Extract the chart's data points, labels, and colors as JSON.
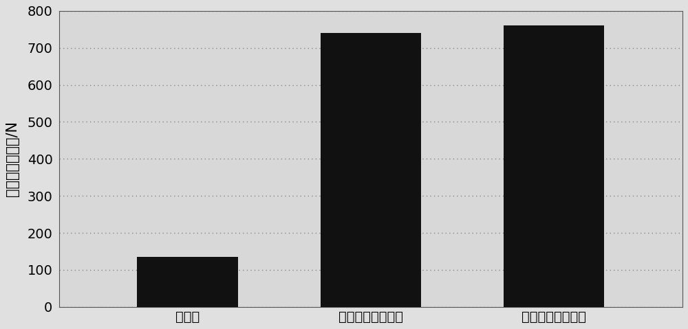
{
  "categories": [
    "未处理",
    "涂环氧树脂浸润剂",
    "涂新型纤维浸润剂"
  ],
  "values": [
    135,
    740,
    760
  ],
  "bar_color": "#111111",
  "ylabel": "纤维束轴向拉力/N",
  "ylim": [
    0,
    800
  ],
  "yticks": [
    0,
    100,
    200,
    300,
    400,
    500,
    600,
    700,
    800
  ],
  "background_color": "#e0e0e0",
  "plot_bg_color": "#d8d8d8",
  "grid_color": "#888888",
  "bar_width": 0.55,
  "ylabel_fontsize": 15,
  "tick_fontsize": 14,
  "xtick_fontsize": 14
}
